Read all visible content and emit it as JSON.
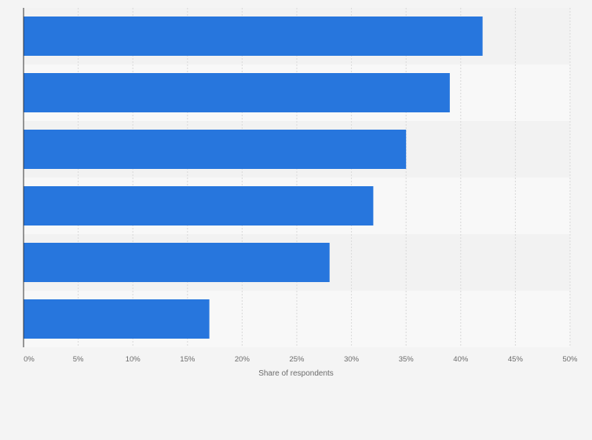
{
  "chart_data": {
    "type": "bar",
    "orientation": "horizontal",
    "categories": [
      "",
      "",
      "",
      "",
      "",
      ""
    ],
    "values": [
      42,
      39,
      35,
      32,
      28,
      17
    ],
    "xlabel": "Share of respondents",
    "ylabel": "",
    "xlim": [
      0,
      50
    ],
    "x_ticks": [
      0,
      5,
      10,
      15,
      20,
      25,
      30,
      35,
      40,
      45,
      50
    ],
    "x_tick_labels": [
      "0%",
      "5%",
      "10%",
      "15%",
      "20%",
      "25%",
      "30%",
      "35%",
      "40%",
      "45%",
      "50%"
    ],
    "grid": true,
    "legend": "none",
    "colors": {
      "bar": "#2776dd",
      "band_dark": "#f2f2f2",
      "band_light": "#f8f8f8",
      "grid": "#d9d9d9",
      "axis": "#333333",
      "text": "#6b6b6b"
    }
  }
}
